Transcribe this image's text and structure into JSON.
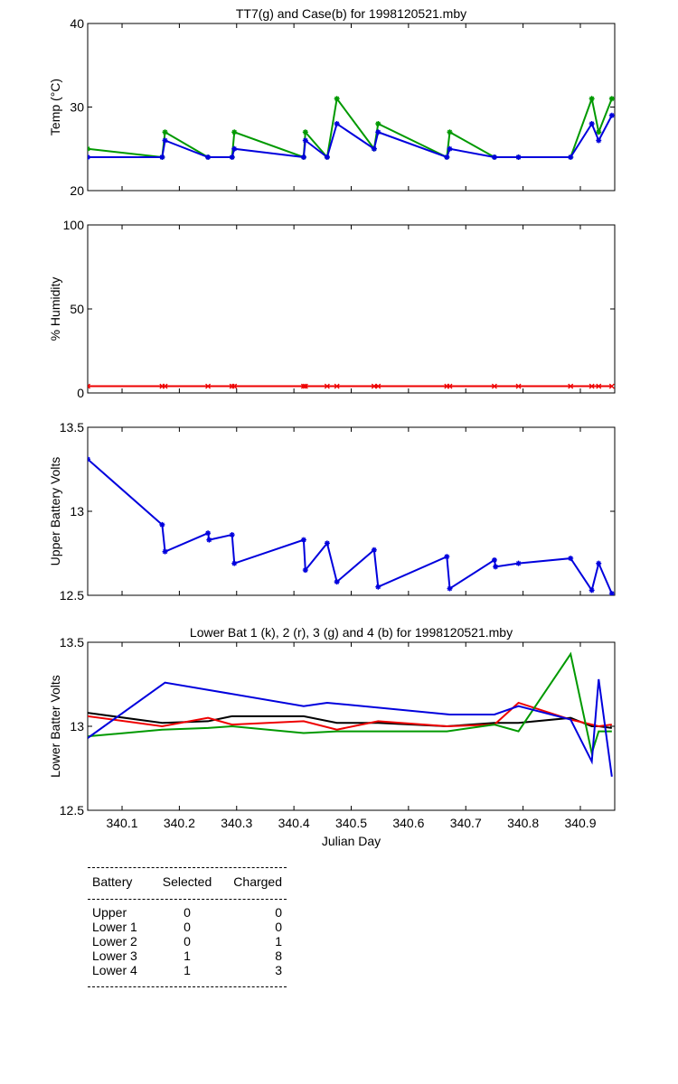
{
  "chart_data": [
    {
      "type": "line",
      "title": "TT7(g) and Case(b) for 1998120521.mby",
      "xlabel": "",
      "ylabel": "Temp  (°C)",
      "xlim": [
        340.04,
        340.96
      ],
      "ylim": [
        20,
        40
      ],
      "yticks": [
        "20",
        "30",
        "40"
      ],
      "series": [
        {
          "name": "TT7",
          "color": "#009900",
          "x": [
            340.04,
            340.17,
            340.175,
            340.25,
            340.292,
            340.296,
            340.417,
            340.42,
            340.458,
            340.475,
            340.54,
            340.547,
            340.667,
            340.672,
            340.75,
            340.792,
            340.883,
            340.92,
            340.932,
            340.955
          ],
          "y": [
            25,
            24,
            27,
            24,
            24,
            27,
            24,
            27,
            24,
            31,
            25,
            28,
            24,
            27,
            24,
            24,
            24,
            31,
            27,
            31
          ]
        },
        {
          "name": "Case",
          "color": "#0000dd",
          "x": [
            340.04,
            340.17,
            340.175,
            340.25,
            340.292,
            340.296,
            340.417,
            340.42,
            340.458,
            340.475,
            340.54,
            340.547,
            340.667,
            340.672,
            340.75,
            340.792,
            340.883,
            340.92,
            340.932,
            340.955
          ],
          "y": [
            24,
            24,
            26,
            24,
            24,
            25,
            24,
            26,
            24,
            28,
            25,
            27,
            24,
            25,
            24,
            24,
            24,
            28,
            26,
            29
          ]
        }
      ]
    },
    {
      "type": "line",
      "title": "",
      "xlabel": "",
      "ylabel": "% Humidity",
      "xlim": [
        340.04,
        340.96
      ],
      "ylim": [
        0,
        100
      ],
      "yticks": [
        "0",
        "50",
        "100"
      ],
      "series": [
        {
          "name": "Humidity",
          "color": "#ee0000",
          "x": [
            340.04,
            340.17,
            340.175,
            340.25,
            340.292,
            340.296,
            340.417,
            340.42,
            340.458,
            340.475,
            340.54,
            340.547,
            340.667,
            340.672,
            340.75,
            340.792,
            340.883,
            340.92,
            340.932,
            340.955
          ],
          "y": [
            4,
            4,
            4,
            4,
            4,
            4,
            4,
            4,
            4,
            4,
            4,
            4,
            4,
            4,
            4,
            4,
            4,
            4,
            4,
            4
          ]
        }
      ]
    },
    {
      "type": "line",
      "title": "",
      "xlabel": "",
      "ylabel": "Upper Battery Volts",
      "xlim": [
        340.04,
        340.96
      ],
      "ylim": [
        12.5,
        13.5
      ],
      "yticks": [
        "12.5",
        "13",
        "13.5"
      ],
      "series": [
        {
          "name": "Upper Battery",
          "color": "#0000dd",
          "x": [
            340.04,
            340.17,
            340.175,
            340.25,
            340.252,
            340.292,
            340.296,
            340.417,
            340.42,
            340.458,
            340.475,
            340.54,
            340.547,
            340.667,
            340.672,
            340.75,
            340.752,
            340.792,
            340.883,
            340.92,
            340.932,
            340.955
          ],
          "y": [
            13.31,
            12.92,
            12.76,
            12.87,
            12.83,
            12.86,
            12.69,
            12.83,
            12.65,
            12.81,
            12.58,
            12.77,
            12.55,
            12.73,
            12.54,
            12.71,
            12.67,
            12.69,
            12.72,
            12.53,
            12.69,
            12.51
          ]
        }
      ]
    },
    {
      "type": "line",
      "title": "Lower Bat 1 (k), 2 (r), 3 (g) and 4 (b) for 1998120521.mby",
      "xlabel": "Julian Day",
      "ylabel": "Lower Batter Volts",
      "xlim": [
        340.04,
        340.96
      ],
      "ylim": [
        12.5,
        13.5
      ],
      "yticks": [
        "12.5",
        "13",
        "13.5"
      ],
      "xticks": [
        340.1,
        340.2,
        340.3,
        340.4,
        340.5,
        340.6,
        340.7,
        340.8,
        340.9
      ],
      "xtick_labels": [
        "340.1",
        "340.2",
        "340.3",
        "340.4",
        "340.5",
        "340.6",
        "340.7",
        "340.8",
        "340.9"
      ],
      "series": [
        {
          "name": "Lower 1 (k)",
          "color": "#000000",
          "x": [
            340.04,
            340.17,
            340.25,
            340.292,
            340.417,
            340.475,
            340.547,
            340.667,
            340.75,
            340.792,
            340.883,
            340.92,
            340.932,
            340.955
          ],
          "y": [
            13.08,
            13.02,
            13.03,
            13.06,
            13.06,
            13.02,
            13.02,
            13.0,
            13.02,
            13.02,
            13.05,
            13.0,
            13.0,
            12.99
          ]
        },
        {
          "name": "Lower 2 (r)",
          "color": "#ee0000",
          "x": [
            340.04,
            340.17,
            340.25,
            340.292,
            340.417,
            340.475,
            340.547,
            340.667,
            340.75,
            340.792,
            340.883,
            340.92,
            340.932,
            340.955
          ],
          "y": [
            13.06,
            13.0,
            13.05,
            13.01,
            13.03,
            12.98,
            13.03,
            13.0,
            13.01,
            13.14,
            13.04,
            13.01,
            13.0,
            13.01
          ]
        },
        {
          "name": "Lower 3 (g)",
          "color": "#009900",
          "x": [
            340.04,
            340.17,
            340.25,
            340.292,
            340.417,
            340.475,
            340.547,
            340.667,
            340.75,
            340.792,
            340.883,
            340.92,
            340.932,
            340.955
          ],
          "y": [
            12.94,
            12.98,
            12.99,
            13.0,
            12.96,
            12.97,
            12.97,
            12.97,
            13.01,
            12.97,
            13.43,
            12.84,
            12.97,
            12.97
          ]
        },
        {
          "name": "Lower 4 (b)",
          "color": "#0000dd",
          "x": [
            340.04,
            340.175,
            340.417,
            340.458,
            340.672,
            340.75,
            340.792,
            340.883,
            340.92,
            340.932,
            340.955
          ],
          "y": [
            12.93,
            13.26,
            13.12,
            13.14,
            13.07,
            13.07,
            13.12,
            13.04,
            12.79,
            13.28,
            12.7
          ]
        }
      ]
    }
  ],
  "legend_table": {
    "headers": [
      "Battery",
      "Selected",
      "Charged"
    ],
    "rows": [
      [
        "Upper",
        "0",
        "0"
      ],
      [
        "Lower 1",
        "0",
        "0"
      ],
      [
        "Lower 2",
        "0",
        "1"
      ],
      [
        "Lower 3",
        "1",
        "8"
      ],
      [
        "Lower 4",
        "1",
        "3"
      ]
    ]
  }
}
